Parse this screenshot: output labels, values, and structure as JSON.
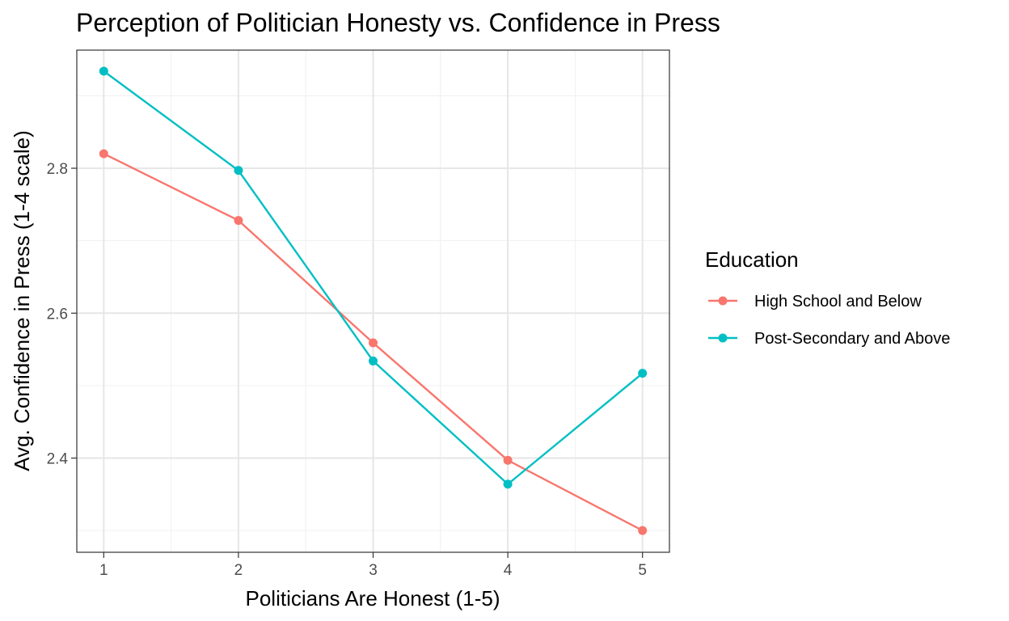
{
  "chart_data": {
    "type": "line",
    "title": "Perception of Politician Honesty vs. Confidence in Press",
    "xlabel": "Politicians Are Honest (1-5)",
    "ylabel": "Avg. Confidence in Press (1-4 scale)",
    "x": [
      1,
      2,
      3,
      4,
      5
    ],
    "x_tick_labels": [
      "1",
      "2",
      "3",
      "4",
      "5"
    ],
    "y_ticks": [
      2.4,
      2.6,
      2.8
    ],
    "y_tick_labels": [
      "2.4",
      "2.6",
      "2.8"
    ],
    "xlim": [
      0.8,
      5.2
    ],
    "ylim": [
      2.27,
      2.963
    ],
    "grid": true,
    "legend": {
      "title": "Education",
      "placement": "right"
    },
    "series": [
      {
        "name": "High School and Below",
        "color": "#F8766D",
        "values": [
          2.82,
          2.728,
          2.559,
          2.397,
          2.3
        ]
      },
      {
        "name": "Post-Secondary and Above",
        "color": "#00BFC4",
        "values": [
          2.934,
          2.797,
          2.534,
          2.364,
          2.517
        ]
      }
    ]
  }
}
